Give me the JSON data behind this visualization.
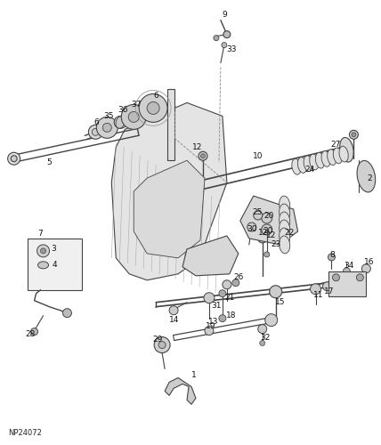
{
  "background_color": "#ffffff",
  "line_color": "#444444",
  "dashed_color": "#888888",
  "part_fill": "#cccccc",
  "part_fill2": "#e8e8e8",
  "fig_width": 4.28,
  "fig_height": 5.0,
  "dpi": 100,
  "watermark": "NP24072",
  "label_fontsize": 6.5,
  "label_color": "#111111"
}
